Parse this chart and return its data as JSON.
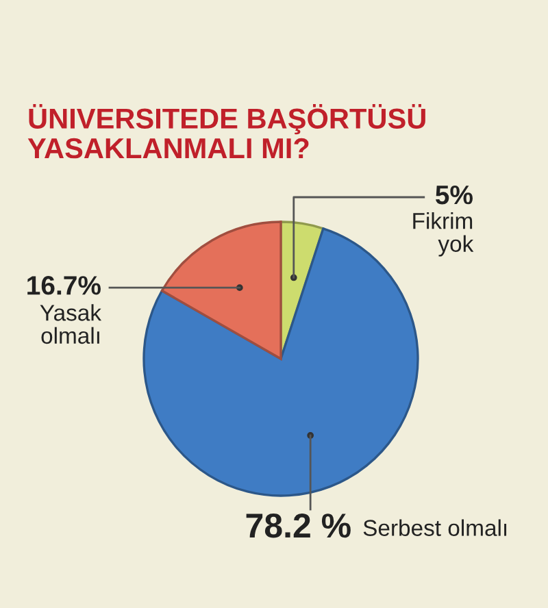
{
  "chart_data": {
    "type": "pie",
    "title": "ÜNIVERSITEDE BAŞÖRTÜSÜ\nYASAKLANMALI MI?",
    "categories": [
      "Fikrim\nyok",
      "Serbest olmalı",
      "Yasak\nolmalı"
    ],
    "values": [
      5,
      78.2,
      16.7
    ],
    "value_labels": [
      "5%",
      "78.2 %",
      "16.7%"
    ],
    "colors": [
      "#cddc6e",
      "#3f7cc4",
      "#e4705a"
    ]
  }
}
